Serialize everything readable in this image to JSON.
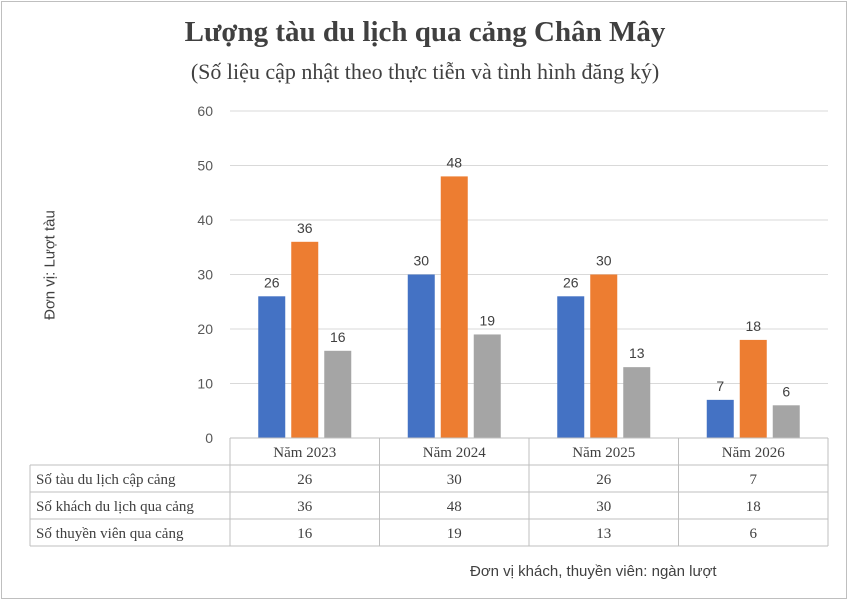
{
  "chart_data": {
    "type": "bar",
    "title": "Lượng tàu du lịch qua cảng Chân Mây",
    "subtitle": "(Số liệu cập nhật theo thực tiễn và tình hình đăng ký)",
    "ylabel": "Đơn vị: Lượt tàu",
    "xlabel": "",
    "categories": [
      "Năm 2023",
      "Năm 2024",
      "Năm 2025",
      "Năm 2026"
    ],
    "series": [
      {
        "name": "Số tàu du lịch cập cảng",
        "values": [
          26,
          30,
          26,
          7
        ],
        "color": "#4472c4"
      },
      {
        "name": "Số khách du lịch qua cảng",
        "values": [
          36,
          48,
          30,
          18
        ],
        "color": "#ed7d31"
      },
      {
        "name": "Số thuyền viên qua cảng",
        "values": [
          16,
          19,
          13,
          6
        ],
        "color": "#a5a5a5"
      }
    ],
    "ylim": [
      0,
      60
    ],
    "yticks": [
      0,
      10,
      20,
      30,
      40,
      50,
      60
    ],
    "grid": true,
    "legend": "data table below chart",
    "footnote": "Đơn vị khách, thuyền viên: ngàn lượt"
  }
}
